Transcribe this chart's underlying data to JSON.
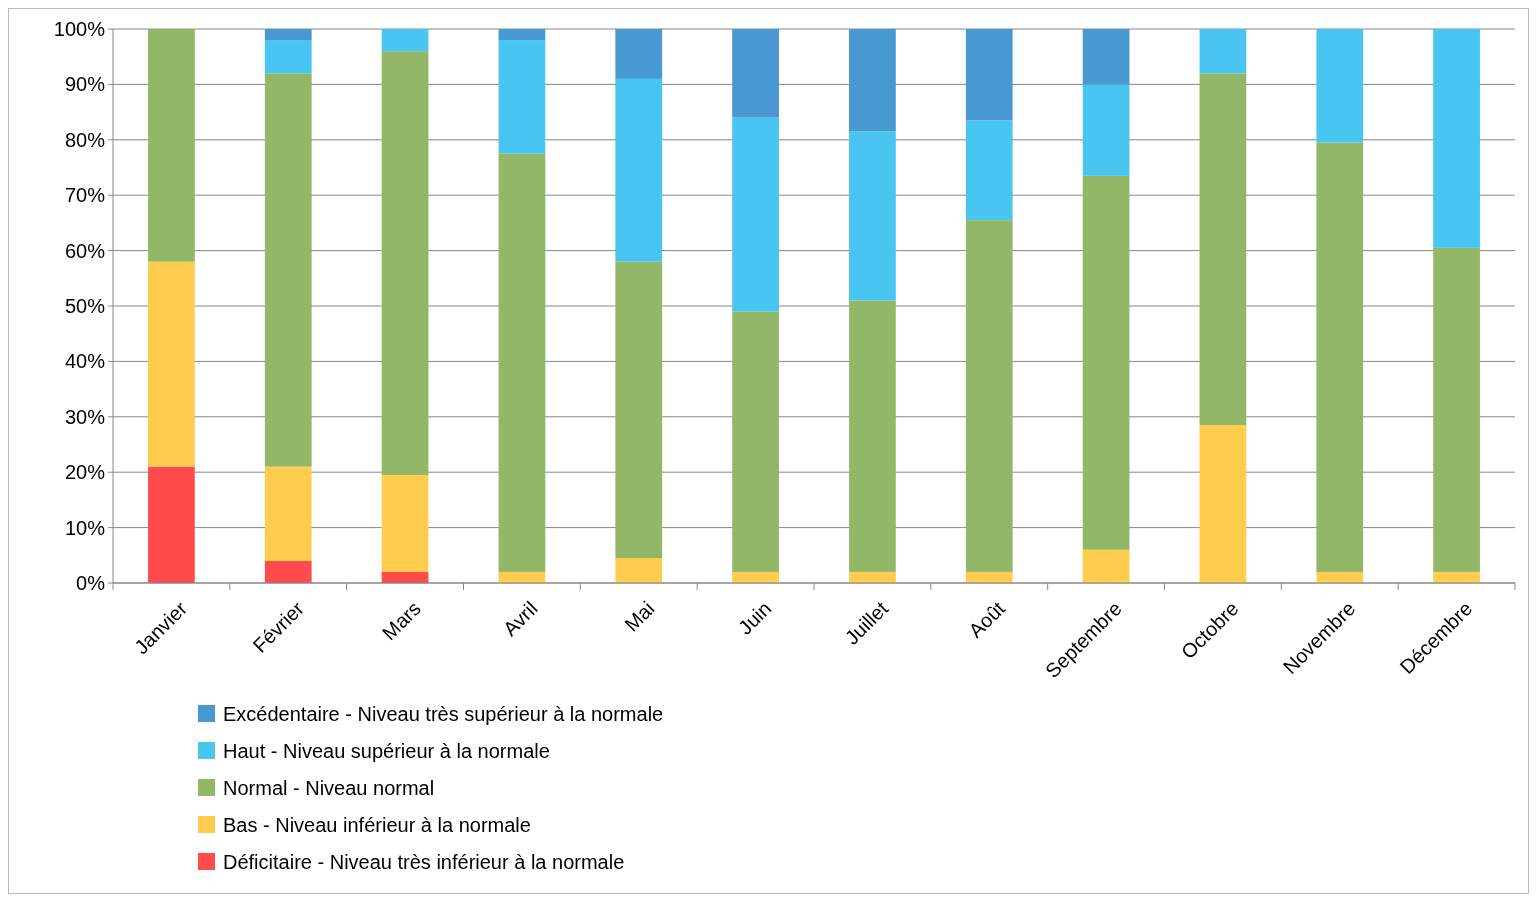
{
  "chart_data": {
    "type": "bar",
    "stacked": true,
    "categories": [
      "Janvier",
      "Février",
      "Mars",
      "Avril",
      "Mai",
      "Juin",
      "Juillet",
      "Août",
      "Septembre",
      "Octobre",
      "Novembre",
      "Décembre"
    ],
    "series": [
      {
        "name": "Déficitaire - Niveau très inférieur à la normale",
        "color": "#ff4b4b",
        "values": [
          21,
          4,
          2,
          0,
          0,
          0,
          0,
          0,
          0,
          0,
          0,
          0
        ]
      },
      {
        "name": "Bas - Niveau inférieur à la normale",
        "color": "#ffcc4d",
        "values": [
          37,
          17,
          17.5,
          2,
          4.5,
          2,
          2,
          2,
          6,
          28.5,
          2,
          2
        ]
      },
      {
        "name": "Normal - Niveau normal",
        "color": "#92b766",
        "values": [
          42,
          71,
          76.5,
          75.5,
          53.5,
          47,
          49,
          63.5,
          67.5,
          63.5,
          77.5,
          58.5
        ]
      },
      {
        "name": "Haut - Niveau supérieur à la normale",
        "color": "#48c5f0",
        "values": [
          0,
          6,
          4,
          20.5,
          33,
          35,
          30.5,
          18,
          16.5,
          8,
          20.5,
          39.5
        ]
      },
      {
        "name": "Excédentaire - Niveau très supérieur à la normale",
        "color": "#4898d2",
        "values": [
          0,
          2,
          0,
          2,
          9,
          16,
          18.5,
          16.5,
          10,
          0,
          0,
          0
        ]
      }
    ],
    "ylim": [
      0,
      100
    ],
    "yticks": [
      {
        "value": 0,
        "label": "0%"
      },
      {
        "value": 10,
        "label": "10%"
      },
      {
        "value": 20,
        "label": "20%"
      },
      {
        "value": 30,
        "label": "30%"
      },
      {
        "value": 40,
        "label": "40%"
      },
      {
        "value": 50,
        "label": "50%"
      },
      {
        "value": 60,
        "label": "60%"
      },
      {
        "value": 70,
        "label": "70%"
      },
      {
        "value": 80,
        "label": "80%"
      },
      {
        "value": 90,
        "label": "90%"
      },
      {
        "value": 100,
        "label": "100%"
      }
    ],
    "grid": "y",
    "legend": "bottom left"
  }
}
